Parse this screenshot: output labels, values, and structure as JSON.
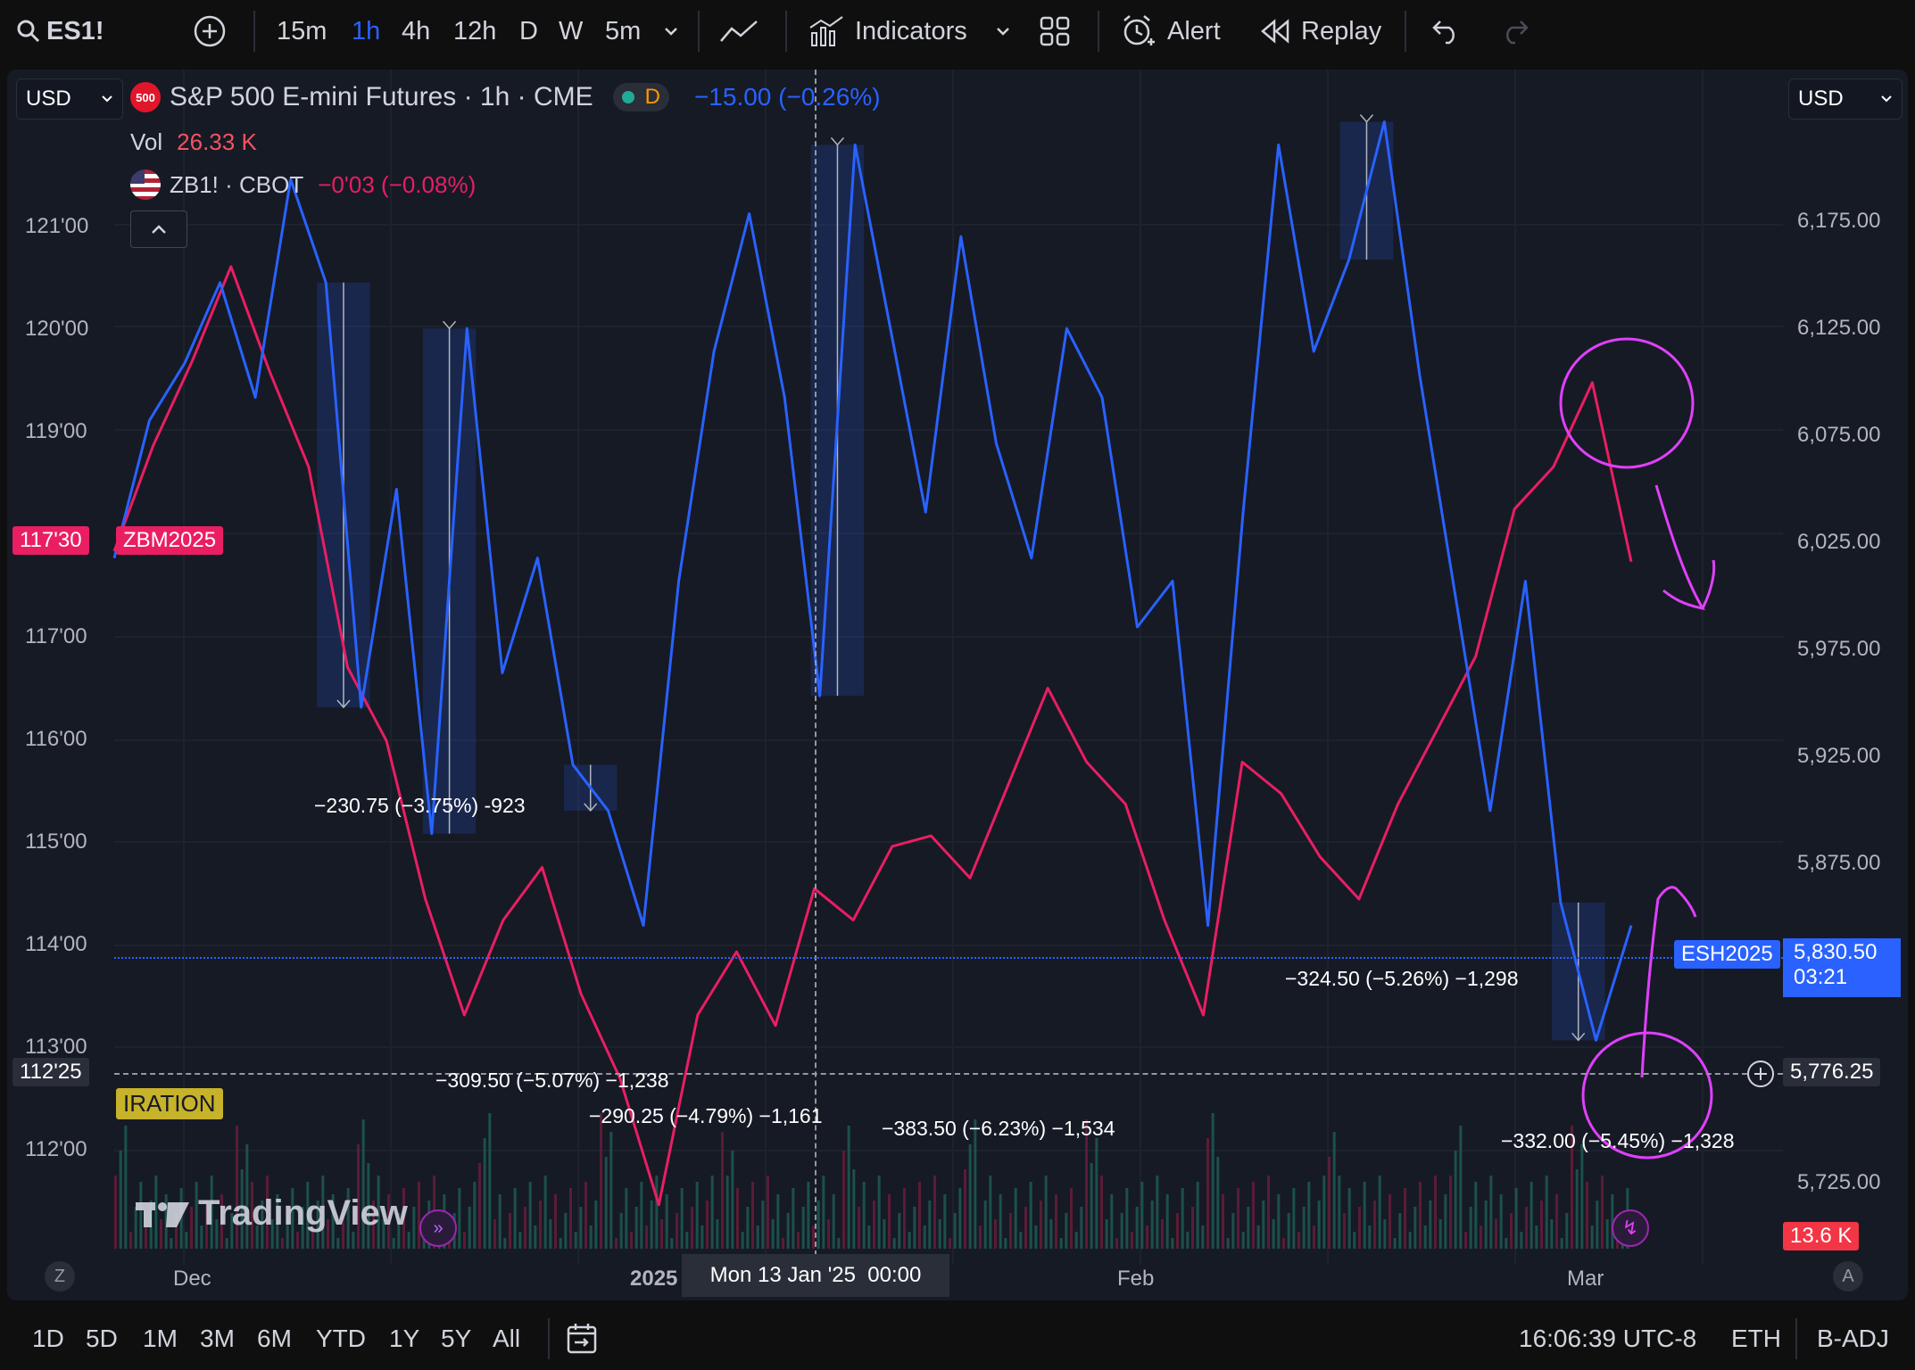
{
  "toolbar": {
    "symbol": "ES1!",
    "intervals": [
      "15m",
      "1h",
      "4h",
      "12h",
      "D",
      "W",
      "5m"
    ],
    "active_interval": "1h",
    "indicators_label": "Indicators",
    "alert_label": "Alert",
    "replay_label": "Replay"
  },
  "legend": {
    "currency_left": "USD",
    "currency_right": "USD",
    "badge": "500",
    "title": "S&P 500 E-mini Futures · 1h · CME",
    "market_status": "D",
    "change": "−15.00 (−0.26%)",
    "vol_label": "Vol",
    "vol_value": "26.33 K",
    "compare_symbol": "ZB1! · CBOT",
    "compare_change": "−0'03 (−0.08%)"
  },
  "left_axis": {
    "ticks": [
      "121'00",
      "120'00",
      "119'00",
      "117'00",
      "116'00",
      "115'00",
      "114'00",
      "113'00",
      "112'00"
    ],
    "current_price": "117'30",
    "current_symbol": "ZBM2025",
    "crosshair_price": "112'25",
    "expiration_label": "IRATION"
  },
  "right_axis": {
    "ticks": [
      "6,175.00",
      "6,125.00",
      "6,075.00",
      "6,025.00",
      "5,975.00",
      "5,925.00",
      "5,875.00",
      "5,725.00"
    ],
    "current_symbol": "ESH2025",
    "current_price": "5,830.50",
    "countdown": "03:21",
    "crosshair_price": "5,776.25",
    "volume_value": "13.6 K"
  },
  "time_axis": {
    "labels": [
      "Dec",
      "2025",
      "Feb",
      "Mar"
    ],
    "crosshair_time": "Mon 13 Jan '25  00:00",
    "left_btn": "Z",
    "right_btn": "A"
  },
  "measurements": [
    "−230.75 (−3.75%) -923",
    "−309.50 (−5.07%) −1,238",
    "−290.25 (−4.79%) −1,161",
    "−383.50 (−6.23%) −1,534",
    "−324.50 (−5.26%) −1,298",
    "−332.00 (−5.45%) −1,328"
  ],
  "watermark": "TradingView",
  "bottom": {
    "ranges": [
      "1D",
      "5D",
      "1M",
      "3M",
      "6M",
      "YTD",
      "1Y",
      "5Y",
      "All"
    ],
    "clock": "16:06:39 UTC-8",
    "session": "ETH",
    "adjust": "B-ADJ"
  },
  "colors": {
    "es_line": "#2962ff",
    "zb_line": "#e91e63",
    "annotation": "#e040fb",
    "background": "#161a25"
  },
  "chart_data": {
    "type": "line",
    "x_labels": [
      "Dec",
      "2025",
      "Feb",
      "Mar"
    ],
    "series": [
      {
        "name": "ESH2025",
        "axis": "right",
        "values": [
          5990,
          6050,
          6075,
          6110,
          6060,
          6155,
          6110,
          5925,
          6020,
          5870,
          6090,
          5940,
          5990,
          5900,
          5880,
          5830,
          5980,
          6080,
          6140,
          6060,
          5930,
          6170,
          6090,
          6010,
          6130,
          6040,
          5990,
          6090,
          6060,
          5960,
          5980,
          5830,
          6010,
          6170,
          6080,
          6120,
          6180,
          6070,
          5975,
          5880,
          5980,
          5840,
          5780,
          5830
        ]
      },
      {
        "name": "ZBM2025",
        "axis": "left",
        "values": [
          117.6,
          118.6,
          119.4,
          120.3,
          119.3,
          118.4,
          116.5,
          115.8,
          114.3,
          113.2,
          114.1,
          114.6,
          113.4,
          112.6,
          111.4,
          113.2,
          113.8,
          113.1,
          114.4,
          114.1,
          114.8,
          114.9,
          114.5,
          115.4,
          116.3,
          115.6,
          115.2,
          114.1,
          113.2,
          115.6,
          115.3,
          114.7,
          114.3,
          115.2,
          115.9,
          116.6,
          118.0,
          118.4,
          119.2,
          117.5
        ]
      }
    ],
    "left_ylim": [
      111,
      122
    ],
    "right_ylim": [
      5690,
      6195
    ],
    "measurements": [
      {
        "from_index": 6,
        "to_index": 7,
        "label": "−230.75 (−3.75%) -923"
      },
      {
        "from_index": 9,
        "to_index": 10,
        "label": "−309.50 (−5.07%) −1,238"
      },
      {
        "from_index": 13,
        "to_index": 14,
        "label": "−290.25 (−4.79%) −1,161"
      },
      {
        "from_index": 20,
        "to_index": 21,
        "label": "−383.50 (−6.23%) −1,534"
      },
      {
        "from_index": 35,
        "to_index": 36,
        "label": "−324.50 (−5.26%) −1,298"
      },
      {
        "from_index": 41,
        "to_index": 42,
        "label": "−332.00 (−5.45%) −1,328"
      }
    ]
  }
}
